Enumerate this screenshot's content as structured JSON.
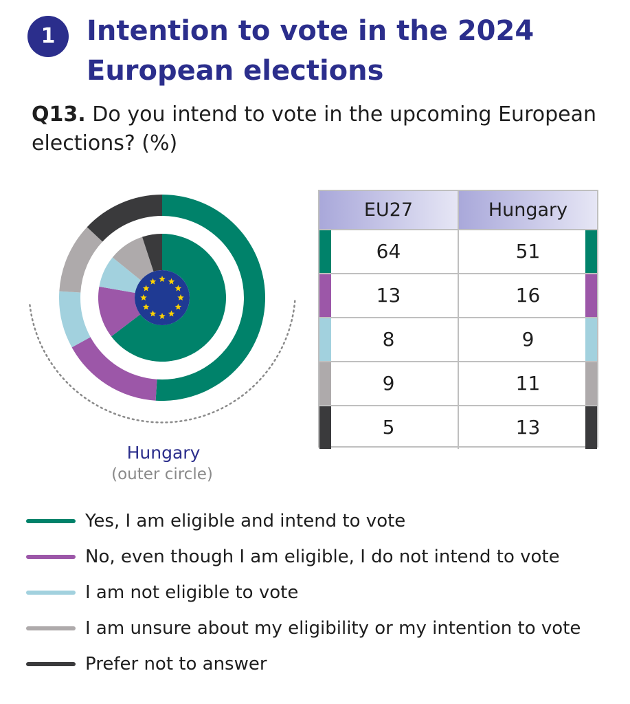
{
  "header": {
    "badge": "1",
    "title": "Intention to vote in the 2024 European elections"
  },
  "question": {
    "number": "Q13.",
    "text": "Do you intend to vote in the upcoming European elections? (%)"
  },
  "donut_label": {
    "country": "Hungary",
    "note": "(outer circle)"
  },
  "colors": {
    "accent": "#2b2e8c",
    "eu_blue": "#1f3a93",
    "eu_star": "#ffd200"
  },
  "chart_data": {
    "type": "pie",
    "title": "",
    "categories": [
      "Yes, I am eligible and intend to vote",
      "No, even though I am eligible, I do not intend to vote",
      "I am not eligible to vote",
      "I am unsure about my eligibility or my intention to vote",
      "Prefer not to answer"
    ],
    "colors": [
      "#00826a",
      "#9c57a8",
      "#a2d1de",
      "#aeaaab",
      "#3a3a3c"
    ],
    "columns": [
      "EU27",
      "Hungary"
    ],
    "series": [
      {
        "name": "EU27",
        "values": [
          64,
          13,
          8,
          9,
          5
        ]
      },
      {
        "name": "Hungary",
        "values": [
          51,
          16,
          9,
          11,
          13
        ]
      }
    ],
    "legend_position": "bottom"
  }
}
